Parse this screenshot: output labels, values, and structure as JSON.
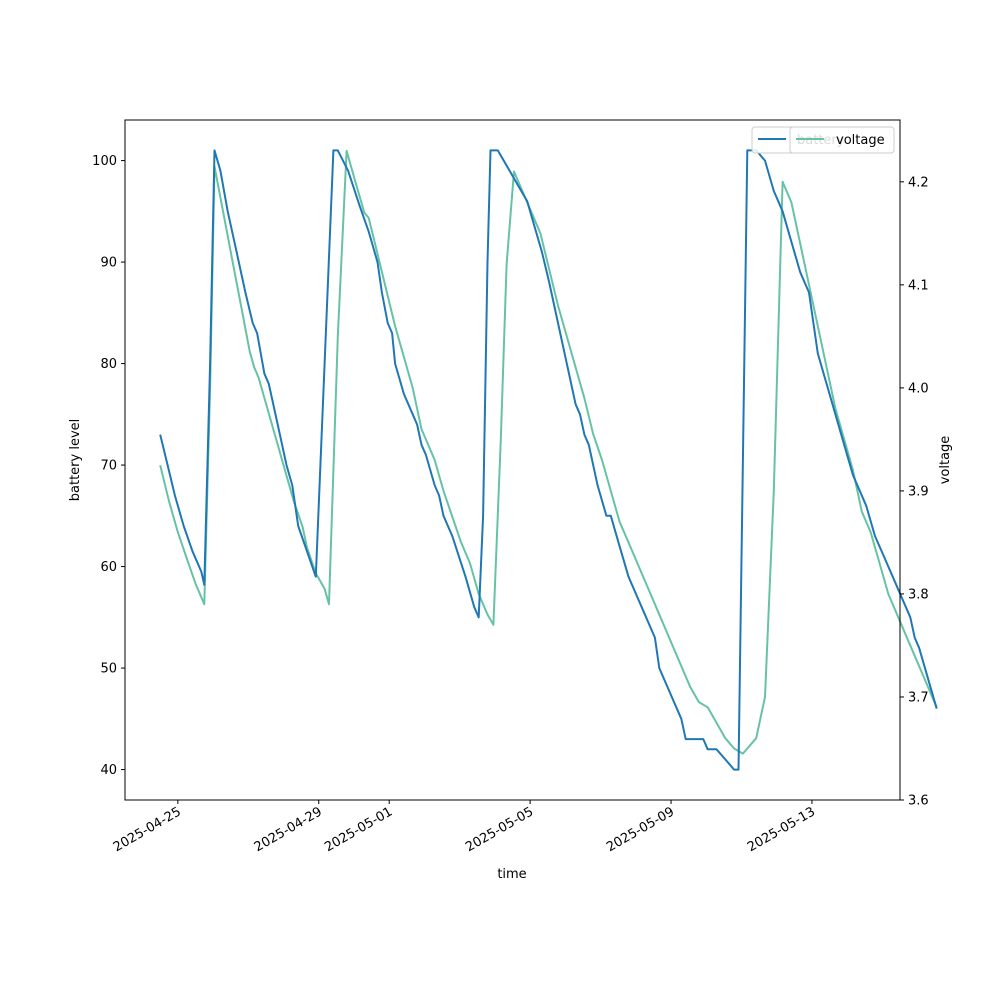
{
  "chart_data": {
    "type": "line",
    "xlabel": "time",
    "ylabel": "battery level",
    "y2label": "voltage",
    "xlim": [
      "2025-04-23T12:00",
      "2025-05-15T12:00"
    ],
    "ylim": [
      37,
      104
    ],
    "y2lim": [
      3.6,
      4.26
    ],
    "x_ticks": [
      "2025-04-25",
      "2025-04-29",
      "2025-05-01",
      "2025-05-05",
      "2025-05-09",
      "2025-05-13"
    ],
    "y_ticks": [
      40,
      50,
      60,
      70,
      80,
      90,
      100
    ],
    "y2_ticks": [
      3.6,
      3.7,
      3.8,
      3.9,
      4.0,
      4.1,
      4.2
    ],
    "legend": {
      "placement": "top-right",
      "entries_overlapping": true
    },
    "series": [
      {
        "name": "battery",
        "axis": "left",
        "color": "#1f77b4",
        "points": [
          [
            "2025-04-24T12:00",
            73
          ],
          [
            "2025-04-24T17:00",
            70
          ],
          [
            "2025-04-24T22:00",
            67
          ],
          [
            "2025-04-25T04:00",
            64
          ],
          [
            "2025-04-25T10:00",
            61.5
          ],
          [
            "2025-04-25T16:00",
            59.5
          ],
          [
            "2025-04-25T18:00",
            58.2
          ],
          [
            "2025-04-25T22:00",
            80
          ],
          [
            "2025-04-26T01:00",
            101
          ],
          [
            "2025-04-26T05:00",
            99
          ],
          [
            "2025-04-26T10:00",
            95
          ],
          [
            "2025-04-26T16:00",
            91
          ],
          [
            "2025-04-26T22:00",
            87
          ],
          [
            "2025-04-27T03:00",
            84
          ],
          [
            "2025-04-27T06:00",
            83
          ],
          [
            "2025-04-27T11:00",
            79
          ],
          [
            "2025-04-27T14:00",
            78
          ],
          [
            "2025-04-27T20:00",
            74
          ],
          [
            "2025-04-28T02:00",
            70
          ],
          [
            "2025-04-28T06:00",
            68
          ],
          [
            "2025-04-28T10:00",
            64
          ],
          [
            "2025-04-28T16:00",
            61.5
          ],
          [
            "2025-04-28T22:00",
            59
          ],
          [
            "2025-04-29T04:00",
            80
          ],
          [
            "2025-04-29T10:00",
            101
          ],
          [
            "2025-04-29T13:00",
            101
          ],
          [
            "2025-04-29T20:00",
            99
          ],
          [
            "2025-04-30T04:00",
            95.5
          ],
          [
            "2025-04-30T10:00",
            93
          ],
          [
            "2025-04-30T16:00",
            90
          ],
          [
            "2025-04-30T19:00",
            87
          ],
          [
            "2025-04-30T23:00",
            84
          ],
          [
            "2025-05-01T02:00",
            83
          ],
          [
            "2025-05-01T04:00",
            80
          ],
          [
            "2025-05-01T10:00",
            77
          ],
          [
            "2025-05-01T16:00",
            75
          ],
          [
            "2025-05-01T19:00",
            74
          ],
          [
            "2025-05-01T22:00",
            72
          ],
          [
            "2025-05-02T01:00",
            71
          ],
          [
            "2025-05-02T07:00",
            68
          ],
          [
            "2025-05-02T10:00",
            67
          ],
          [
            "2025-05-02T13:00",
            65
          ],
          [
            "2025-05-02T19:00",
            63
          ],
          [
            "2025-05-03T04:00",
            59
          ],
          [
            "2025-05-03T10:00",
            56
          ],
          [
            "2025-05-03T13:00",
            55
          ],
          [
            "2025-05-03T16:00",
            65
          ],
          [
            "2025-05-03T19:00",
            90
          ],
          [
            "2025-05-03T21:00",
            101
          ],
          [
            "2025-05-04T02:00",
            101
          ],
          [
            "2025-05-04T10:00",
            99
          ],
          [
            "2025-05-04T16:00",
            97.5
          ],
          [
            "2025-05-04T22:00",
            96
          ],
          [
            "2025-05-05T04:00",
            93
          ],
          [
            "2025-05-05T08:00",
            91
          ],
          [
            "2025-05-05T13:00",
            88
          ],
          [
            "2025-05-05T19:00",
            84
          ],
          [
            "2025-05-06T01:00",
            80
          ],
          [
            "2025-05-06T07:00",
            76
          ],
          [
            "2025-05-06T10:00",
            75
          ],
          [
            "2025-05-06T13:00",
            73
          ],
          [
            "2025-05-06T16:00",
            72
          ],
          [
            "2025-05-06T22:00",
            68
          ],
          [
            "2025-05-07T04:00",
            65
          ],
          [
            "2025-05-07T07:00",
            65
          ],
          [
            "2025-05-07T13:00",
            62
          ],
          [
            "2025-05-07T19:00",
            59
          ],
          [
            "2025-05-08T01:00",
            57
          ],
          [
            "2025-05-08T07:00",
            55
          ],
          [
            "2025-05-08T13:00",
            53
          ],
          [
            "2025-05-08T16:00",
            50
          ],
          [
            "2025-05-08T22:00",
            48
          ],
          [
            "2025-05-09T04:00",
            46
          ],
          [
            "2025-05-09T07:00",
            45
          ],
          [
            "2025-05-09T10:00",
            43
          ],
          [
            "2025-05-09T16:00",
            43
          ],
          [
            "2025-05-09T22:00",
            43
          ],
          [
            "2025-05-10T01:00",
            42
          ],
          [
            "2025-05-10T07:00",
            42
          ],
          [
            "2025-05-10T13:00",
            41
          ],
          [
            "2025-05-10T19:00",
            40
          ],
          [
            "2025-05-10T22:00",
            40
          ],
          [
            "2025-05-11T04:00",
            101
          ],
          [
            "2025-05-11T10:00",
            101
          ],
          [
            "2025-05-11T16:00",
            100
          ],
          [
            "2025-05-11T22:00",
            97
          ],
          [
            "2025-05-12T04:00",
            95
          ],
          [
            "2025-05-12T10:00",
            92
          ],
          [
            "2025-05-12T16:00",
            89
          ],
          [
            "2025-05-12T22:00",
            87
          ],
          [
            "2025-05-13T04:00",
            81
          ],
          [
            "2025-05-13T10:00",
            78
          ],
          [
            "2025-05-13T16:00",
            75
          ],
          [
            "2025-05-13T22:00",
            72
          ],
          [
            "2025-05-14T04:00",
            69
          ],
          [
            "2025-05-14T07:00",
            68
          ],
          [
            "2025-05-14T13:00",
            66
          ],
          [
            "2025-05-14T19:00",
            63
          ],
          [
            "2025-05-15T01:00",
            61
          ],
          [
            "2025-05-15T07:00",
            59
          ],
          [
            "2025-05-15T13:00",
            57
          ],
          [
            "2025-05-15T19:00",
            55
          ],
          [
            "2025-05-15T22:00",
            53
          ],
          [
            "2025-05-16T01:00",
            52
          ],
          [
            "2025-05-16T07:00",
            49
          ],
          [
            "2025-05-16T13:00",
            46
          ]
        ]
      },
      {
        "name": "voltage",
        "axis": "right",
        "color": "#66c2a5",
        "points": [
          [
            "2025-04-24T12:00",
            3.925
          ],
          [
            "2025-04-24T18:00",
            3.89
          ],
          [
            "2025-04-25T00:00",
            3.86
          ],
          [
            "2025-04-25T06:00",
            3.835
          ],
          [
            "2025-04-25T12:00",
            3.81
          ],
          [
            "2025-04-25T18:00",
            3.79
          ],
          [
            "2025-04-25T22:00",
            4.0
          ],
          [
            "2025-04-26T01:00",
            4.215
          ],
          [
            "2025-04-26T07:00",
            4.17
          ],
          [
            "2025-04-26T13:00",
            4.125
          ],
          [
            "2025-04-26T19:00",
            4.08
          ],
          [
            "2025-04-27T01:00",
            4.035
          ],
          [
            "2025-04-27T04:00",
            4.02
          ],
          [
            "2025-04-27T07:00",
            4.01
          ],
          [
            "2025-04-27T13:00",
            3.98
          ],
          [
            "2025-04-27T19:00",
            3.95
          ],
          [
            "2025-04-28T01:00",
            3.92
          ],
          [
            "2025-04-28T07:00",
            3.89
          ],
          [
            "2025-04-28T13:00",
            3.865
          ],
          [
            "2025-04-28T16:00",
            3.845
          ],
          [
            "2025-04-28T22:00",
            3.82
          ],
          [
            "2025-04-29T04:00",
            3.805
          ],
          [
            "2025-04-29T07:00",
            3.79
          ],
          [
            "2025-04-29T13:00",
            4.05
          ],
          [
            "2025-04-29T19:00",
            4.23
          ],
          [
            "2025-04-30T01:00",
            4.2
          ],
          [
            "2025-04-30T07:00",
            4.17
          ],
          [
            "2025-04-30T10:00",
            4.165
          ],
          [
            "2025-04-30T16:00",
            4.13
          ],
          [
            "2025-04-30T22:00",
            4.095
          ],
          [
            "2025-05-01T04:00",
            4.06
          ],
          [
            "2025-05-01T10:00",
            4.03
          ],
          [
            "2025-05-01T16:00",
            4.0
          ],
          [
            "2025-05-01T22:00",
            3.96
          ],
          [
            "2025-05-02T01:00",
            3.95
          ],
          [
            "2025-05-02T07:00",
            3.93
          ],
          [
            "2025-05-02T13:00",
            3.9
          ],
          [
            "2025-05-02T19:00",
            3.875
          ],
          [
            "2025-05-03T01:00",
            3.85
          ],
          [
            "2025-05-03T07:00",
            3.83
          ],
          [
            "2025-05-03T13:00",
            3.8
          ],
          [
            "2025-05-03T19:00",
            3.78
          ],
          [
            "2025-05-03T23:00",
            3.77
          ],
          [
            "2025-05-04T04:00",
            3.95
          ],
          [
            "2025-05-04T08:00",
            4.12
          ],
          [
            "2025-05-04T13:00",
            4.21
          ],
          [
            "2025-05-04T19:00",
            4.19
          ],
          [
            "2025-05-05T01:00",
            4.17
          ],
          [
            "2025-05-05T07:00",
            4.15
          ],
          [
            "2025-05-05T13:00",
            4.115
          ],
          [
            "2025-05-05T19:00",
            4.08
          ],
          [
            "2025-05-06T01:00",
            4.05
          ],
          [
            "2025-05-06T07:00",
            4.02
          ],
          [
            "2025-05-06T13:00",
            3.99
          ],
          [
            "2025-05-06T19:00",
            3.955
          ],
          [
            "2025-05-07T01:00",
            3.93
          ],
          [
            "2025-05-07T07:00",
            3.9
          ],
          [
            "2025-05-07T13:00",
            3.87
          ],
          [
            "2025-05-07T19:00",
            3.85
          ],
          [
            "2025-05-08T01:00",
            3.83
          ],
          [
            "2025-05-08T07:00",
            3.81
          ],
          [
            "2025-05-08T13:00",
            3.79
          ],
          [
            "2025-05-08T19:00",
            3.77
          ],
          [
            "2025-05-09T01:00",
            3.75
          ],
          [
            "2025-05-09T07:00",
            3.73
          ],
          [
            "2025-05-09T13:00",
            3.71
          ],
          [
            "2025-05-09T19:00",
            3.695
          ],
          [
            "2025-05-10T01:00",
            3.69
          ],
          [
            "2025-05-10T07:00",
            3.675
          ],
          [
            "2025-05-10T13:00",
            3.66
          ],
          [
            "2025-05-10T19:00",
            3.65
          ],
          [
            "2025-05-11T01:00",
            3.645
          ],
          [
            "2025-05-11T04:00",
            3.65
          ],
          [
            "2025-05-11T10:00",
            3.66
          ],
          [
            "2025-05-11T16:00",
            3.7
          ],
          [
            "2025-05-11T22:00",
            3.9
          ],
          [
            "2025-05-12T04:00",
            4.2
          ],
          [
            "2025-05-12T10:00",
            4.18
          ],
          [
            "2025-05-12T16:00",
            4.14
          ],
          [
            "2025-05-12T22:00",
            4.1
          ],
          [
            "2025-05-13T04:00",
            4.06
          ],
          [
            "2025-05-13T10:00",
            4.02
          ],
          [
            "2025-05-13T16:00",
            3.98
          ],
          [
            "2025-05-13T22:00",
            3.95
          ],
          [
            "2025-05-14T04:00",
            3.92
          ],
          [
            "2025-05-14T07:00",
            3.9
          ],
          [
            "2025-05-14T10:00",
            3.88
          ],
          [
            "2025-05-14T16:00",
            3.86
          ],
          [
            "2025-05-14T22:00",
            3.83
          ],
          [
            "2025-05-15T04:00",
            3.8
          ],
          [
            "2025-05-15T10:00",
            3.78
          ],
          [
            "2025-05-15T16:00",
            3.76
          ],
          [
            "2025-05-15T22:00",
            3.74
          ],
          [
            "2025-05-16T04:00",
            3.72
          ],
          [
            "2025-05-16T13:00",
            3.69
          ]
        ]
      }
    ]
  }
}
